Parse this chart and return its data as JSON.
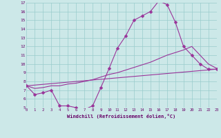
{
  "xlabel": "Windchill (Refroidissement éolien,°C)",
  "bg_color": "#cce8e8",
  "line_color": "#993399",
  "grid_color": "#99cccc",
  "xmin": 0,
  "xmax": 23,
  "ymin": 5,
  "ymax": 17,
  "line1_x": [
    0,
    1,
    2,
    3,
    4,
    5,
    6,
    7,
    8,
    9,
    10,
    11,
    12,
    13,
    14,
    15,
    16,
    17,
    18,
    19,
    20,
    21,
    22,
    23
  ],
  "line1_y": [
    7.5,
    6.5,
    6.7,
    7.0,
    5.2,
    5.2,
    5.0,
    4.8,
    5.2,
    7.3,
    9.5,
    11.8,
    13.2,
    15.0,
    15.5,
    16.0,
    17.2,
    16.8,
    14.8,
    12.0,
    11.0,
    10.0,
    9.4,
    9.4
  ],
  "line2_x": [
    0,
    1,
    2,
    3,
    4,
    5,
    6,
    7,
    8,
    9,
    10,
    11,
    12,
    13,
    14,
    15,
    16,
    17,
    18,
    19,
    20,
    21,
    22,
    23
  ],
  "line2_y": [
    7.5,
    7.2,
    7.3,
    7.5,
    7.5,
    7.7,
    7.8,
    8.0,
    8.2,
    8.5,
    8.8,
    9.0,
    9.3,
    9.6,
    9.9,
    10.2,
    10.6,
    11.0,
    11.3,
    11.6,
    12.0,
    11.0,
    10.0,
    9.5
  ],
  "line3_x": [
    0,
    23
  ],
  "line3_y": [
    7.5,
    9.4
  ],
  "marker": "D",
  "markersize": 2.5
}
